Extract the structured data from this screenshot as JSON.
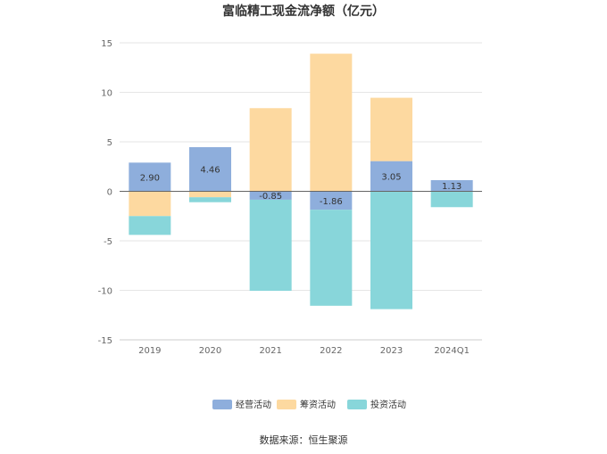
{
  "chart_data": {
    "type": "bar",
    "stacked": true,
    "title": "富临精工现金流净额（亿元）",
    "categories": [
      "2019",
      "2020",
      "2021",
      "2022",
      "2023",
      "2024Q1"
    ],
    "ylim": [
      -15,
      15
    ],
    "yticks": [
      15,
      10,
      5,
      0,
      -5,
      -10,
      -15
    ],
    "grid": true,
    "legend_position": "bottom",
    "series": [
      {
        "name": "经营活动",
        "color": "#8eaedc",
        "values": [
          2.9,
          4.46,
          -0.85,
          -1.86,
          3.05,
          1.13
        ],
        "labels": [
          "2.90",
          "4.46",
          "-0.85",
          "-1.86",
          "3.05",
          "1.13"
        ]
      },
      {
        "name": "筹资活动",
        "color": "#fdd9a0",
        "values": [
          -2.5,
          -0.6,
          8.4,
          13.9,
          6.4,
          0
        ]
      },
      {
        "name": "投资活动",
        "color": "#88d6da",
        "values": [
          -1.9,
          -0.5,
          -9.2,
          -9.7,
          -11.9,
          -1.6
        ]
      }
    ],
    "source": "数据来源：恒生聚源"
  }
}
